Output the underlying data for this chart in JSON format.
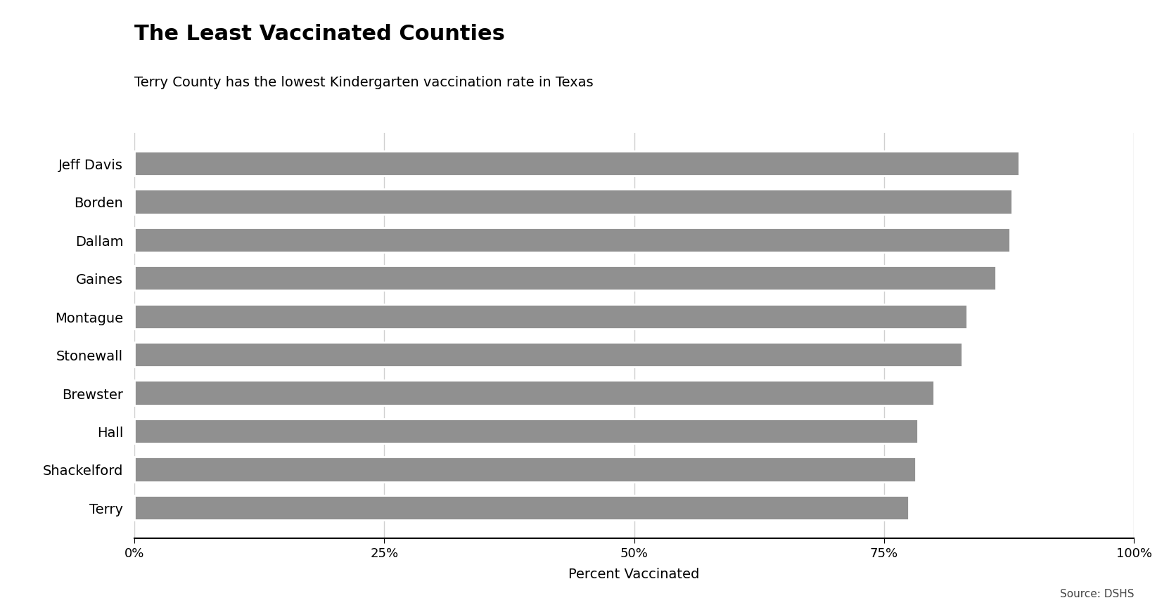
{
  "title": "The Least Vaccinated Counties",
  "subtitle": "Terry County has the lowest Kindergarten vaccination rate in Texas",
  "xlabel": "Percent Vaccinated",
  "source": "Source: DSHS",
  "counties": [
    "Terry",
    "Shackelford",
    "Hall",
    "Brewster",
    "Stonewall",
    "Montague",
    "Gaines",
    "Dallam",
    "Borden",
    "Jeff Davis"
  ],
  "values": [
    0.775,
    0.782,
    0.784,
    0.8,
    0.828,
    0.833,
    0.862,
    0.876,
    0.878,
    0.885
  ],
  "bar_color": "#909090",
  "background_color": "#ffffff",
  "xlim": [
    0,
    1.0
  ],
  "xticks": [
    0,
    0.25,
    0.5,
    0.75,
    1.0
  ],
  "xtick_labels": [
    "0%",
    "25%",
    "50%",
    "75%",
    "100%"
  ],
  "grid_color": "#d0d0d0",
  "title_fontsize": 22,
  "subtitle_fontsize": 14,
  "label_fontsize": 14,
  "tick_fontsize": 13,
  "source_fontsize": 11,
  "bar_height": 0.65
}
